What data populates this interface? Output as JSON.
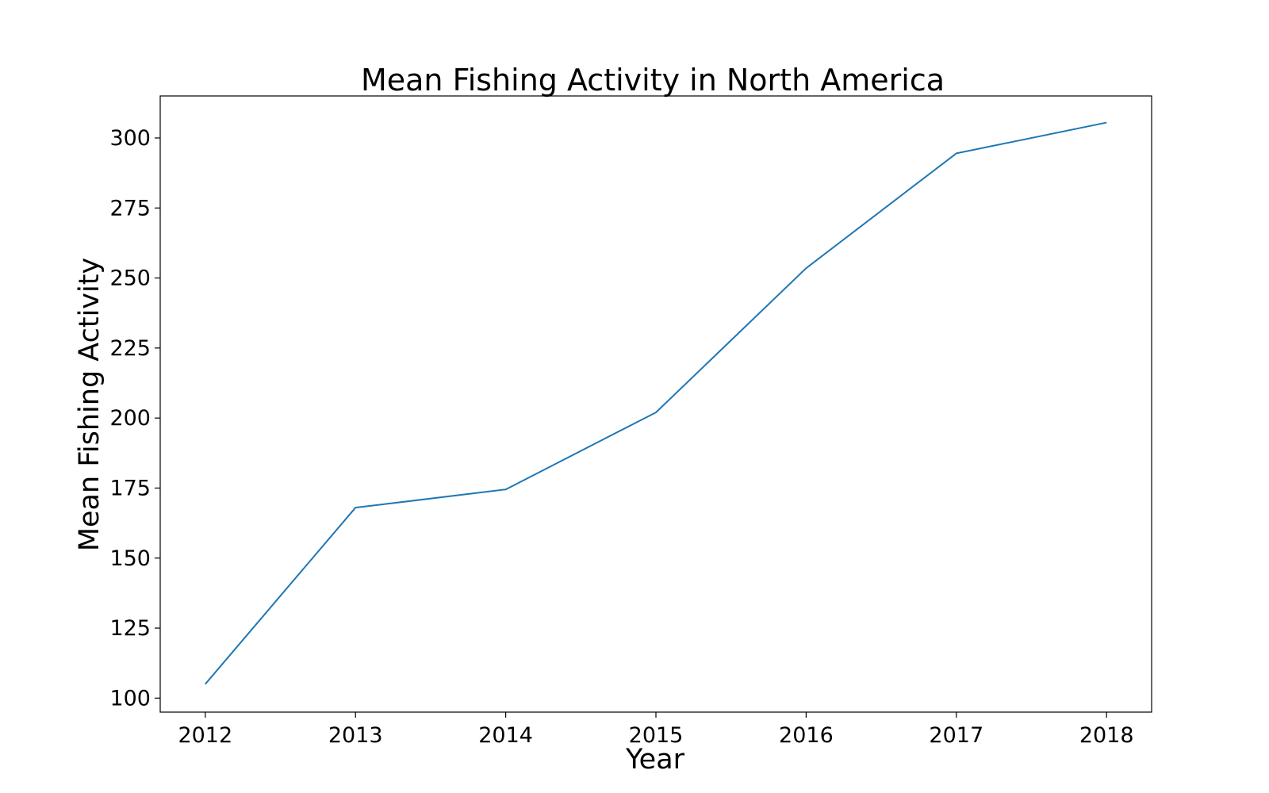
{
  "chart_data": {
    "type": "line",
    "title": "Mean Fishing Activity in North America",
    "xlabel": "Year",
    "ylabel": "Mean Fishing Activity",
    "x": [
      2012,
      2013,
      2014,
      2015,
      2016,
      2017,
      2018
    ],
    "series": [
      {
        "values": [
          105,
          168,
          174.5,
          202,
          253.5,
          294.5,
          305.5
        ]
      }
    ],
    "xlim": [
      2011.7,
      2018.3
    ],
    "ylim": [
      95,
      315
    ],
    "yticks": [
      100,
      125,
      150,
      175,
      200,
      225,
      250,
      275,
      300
    ],
    "grid": false,
    "line_color": "#1f77b4"
  }
}
